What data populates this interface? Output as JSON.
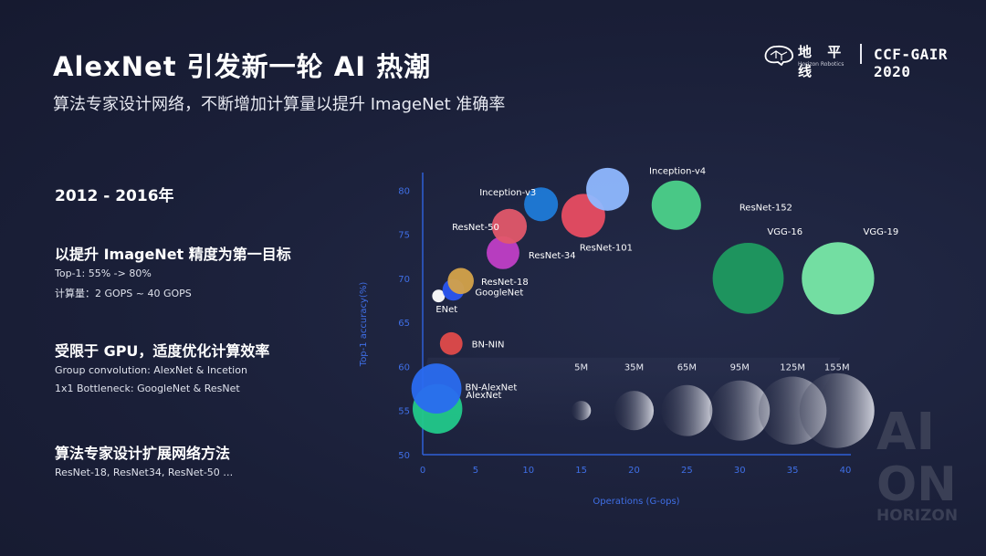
{
  "header": {
    "title": "AlexNet 引发新一轮 AI 热潮",
    "subtitle": "算法专家设计网络，不断增加计算量以提升 ImageNet 准确率",
    "logo_cn": "地 平 线",
    "logo_en": "Horizon Robotics",
    "event": "CCF-GAIR 2020"
  },
  "left": {
    "period": "2012 - 2016年",
    "sections": [
      {
        "title": "以提升 ImageNet 精度为第一目标",
        "lines": [
          "Top-1: 55% -> 80%",
          "计算量：2 GOPS ~ 40 GOPS"
        ]
      },
      {
        "title": "受限于 GPU，适度优化计算效率",
        "lines": [
          "Group convolution: AlexNet & Incetion",
          "1x1 Bottleneck: GoogleNet & ResNet"
        ]
      },
      {
        "title": "算法专家设计扩展网络方法",
        "lines": [
          "ResNet-18, ResNet34, ResNet-50 …"
        ]
      }
    ]
  },
  "watermark": {
    "lines": [
      "AI",
      "ON",
      "HORIZON"
    ]
  },
  "colors": {
    "background": "#1a1f38",
    "axis": "#2f5fd6",
    "axis_text": "#3f6fe6"
  },
  "chart_data": {
    "type": "scatter",
    "xlabel": "Operations (G-ops)",
    "ylabel": "Top-1 accuracy(%)",
    "xlim": [
      0,
      40
    ],
    "ylim": [
      50,
      82
    ],
    "xticks": [
      0,
      5,
      10,
      15,
      20,
      25,
      30,
      35,
      40
    ],
    "yticks": [
      50,
      55,
      60,
      65,
      70,
      75,
      80
    ],
    "size_unit": "parameters",
    "points": [
      {
        "name": "AlexNet",
        "x": 1.4,
        "y": 55.2,
        "params_m": 61,
        "color": "#22c98a",
        "label_dx": 4,
        "label_dy": -12
      },
      {
        "name": "BN-AlexNet",
        "x": 1.3,
        "y": 57.5,
        "params_m": 62,
        "color": "#2a6cf0",
        "label_dx": 4,
        "label_dy": 2
      },
      {
        "name": "BN-NIN",
        "x": 2.7,
        "y": 62.6,
        "params_m": 8,
        "color": "#e04a4a",
        "label_dx": 10,
        "label_dy": 4
      },
      {
        "name": "ENet",
        "x": 1.5,
        "y": 68.0,
        "params_m": 1,
        "color": "#ffffff",
        "label_dx": -10,
        "label_dy": 18
      },
      {
        "name": "GoogleNet",
        "x": 2.9,
        "y": 68.7,
        "params_m": 7,
        "color": "#2a55f0",
        "label_dx": 12,
        "label_dy": 6
      },
      {
        "name": "ResNet-18",
        "x": 3.6,
        "y": 69.7,
        "params_m": 12,
        "color": "#d4a24a",
        "label_dx": 8,
        "label_dy": 4
      },
      {
        "name": "ResNet-34",
        "x": 7.6,
        "y": 72.9,
        "params_m": 22,
        "color": "#c03ec6",
        "label_dx": 10,
        "label_dy": 6
      },
      {
        "name": "ResNet-50",
        "x": 8.2,
        "y": 75.9,
        "params_m": 26,
        "color": "#e2576a",
        "label_dx": -82,
        "label_dy": 4
      },
      {
        "name": "Inception-v3",
        "x": 11.2,
        "y": 78.4,
        "params_m": 24,
        "color": "#1f7ad8",
        "label_dx": -86,
        "label_dy": -10
      },
      {
        "name": "ResNet-101",
        "x": 15.2,
        "y": 77.1,
        "params_m": 45,
        "color": "#e84c62",
        "label_dx": -28,
        "label_dy": 38
      },
      {
        "name": "Inception-v4",
        "x": 17.5,
        "y": 80.1,
        "params_m": 43,
        "color": "#8fb8ff",
        "label_dx": 22,
        "label_dy": -17
      },
      {
        "name": "ResNet-152",
        "x": 24.0,
        "y": 78.3,
        "params_m": 60,
        "color": "#4cd18a",
        "label_dx": 42,
        "label_dy": 6
      },
      {
        "name": "VGG-16",
        "x": 30.8,
        "y": 70.0,
        "params_m": 138,
        "color": "#1f9a60",
        "label_dx": -18,
        "label_dy": -48
      },
      {
        "name": "VGG-19",
        "x": 39.3,
        "y": 70.0,
        "params_m": 144,
        "color": "#78e8a8",
        "label_dx": -12,
        "label_dy": -48
      }
    ],
    "size_legend": {
      "labels": [
        "5M",
        "35M",
        "65M",
        "95M",
        "125M",
        "155M"
      ],
      "x": [
        15,
        20,
        25,
        30,
        35,
        39.2
      ],
      "y": 55
    }
  }
}
